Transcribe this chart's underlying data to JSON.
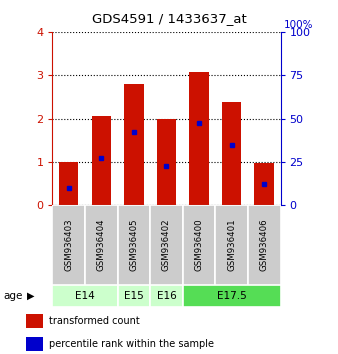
{
  "title": "GDS4591 / 1433637_at",
  "samples": [
    "GSM936403",
    "GSM936404",
    "GSM936405",
    "GSM936402",
    "GSM936400",
    "GSM936401",
    "GSM936406"
  ],
  "transformed_counts": [
    1.0,
    2.05,
    2.8,
    2.0,
    3.07,
    2.38,
    0.97
  ],
  "percentile_ranks": [
    10.0,
    27.5,
    42.5,
    22.5,
    47.5,
    35.0,
    12.5
  ],
  "ages": [
    {
      "label": "E14",
      "samples": [
        "GSM936403",
        "GSM936404"
      ],
      "color": "#ccffcc"
    },
    {
      "label": "E15",
      "samples": [
        "GSM936405"
      ],
      "color": "#ccffcc"
    },
    {
      "label": "E16",
      "samples": [
        "GSM936402"
      ],
      "color": "#ccffcc"
    },
    {
      "label": "E17.5",
      "samples": [
        "GSM936400",
        "GSM936401",
        "GSM936406"
      ],
      "color": "#55dd55"
    }
  ],
  "ylim_left": [
    0,
    4
  ],
  "ylim_right": [
    0,
    100
  ],
  "yticks_left": [
    0,
    1,
    2,
    3,
    4
  ],
  "yticks_right": [
    0,
    25,
    50,
    75,
    100
  ],
  "bar_color": "#cc1100",
  "percentile_color": "#0000cc",
  "bar_width": 0.6,
  "sample_box_color": "#cccccc",
  "legend_red": "transformed count",
  "legend_blue": "percentile rank within the sample",
  "right_axis_color": "#0000cc",
  "left_axis_color": "#cc1100"
}
